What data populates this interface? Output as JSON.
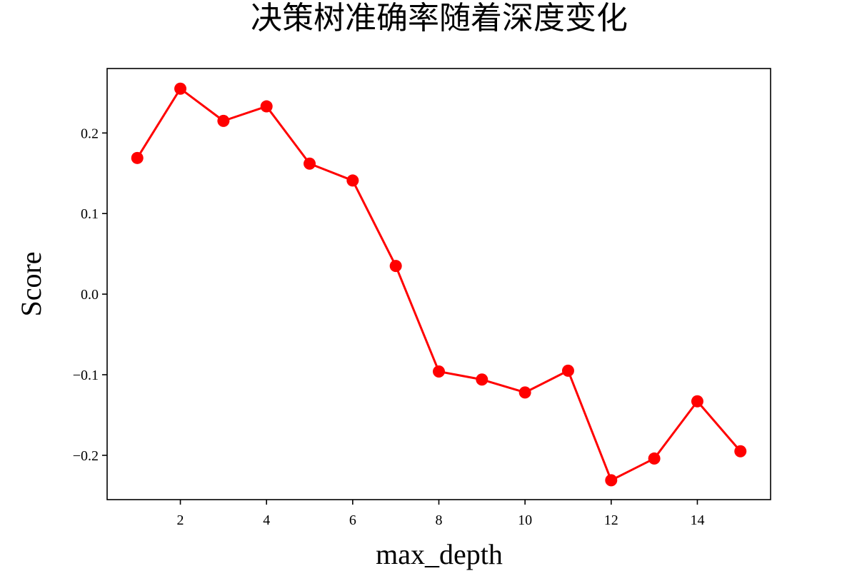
{
  "chart_data": {
    "type": "line",
    "title": "决策树准确率随着深度变化",
    "xlabel": "max_depth",
    "ylabel": "Score",
    "x": [
      1,
      2,
      3,
      4,
      5,
      6,
      7,
      8,
      9,
      10,
      11,
      12,
      13,
      14,
      15
    ],
    "series": [
      {
        "values": [
          0.169,
          0.255,
          0.215,
          0.233,
          0.162,
          0.141,
          0.035,
          -0.096,
          -0.106,
          -0.122,
          -0.095,
          -0.231,
          -0.204,
          -0.133,
          -0.195
        ],
        "color": "#ff0000",
        "marker": "circle"
      }
    ],
    "xlim": [
      0.3,
      15.7
    ],
    "ylim": [
      -0.255,
      0.28
    ],
    "xticks": [
      2,
      4,
      6,
      8,
      10,
      12,
      14
    ],
    "xtick_labels": [
      "2",
      "4",
      "6",
      "8",
      "10",
      "12",
      "14"
    ],
    "yticks": [
      -0.2,
      -0.1,
      0.0,
      0.1,
      0.2
    ],
    "ytick_labels": [
      "−0.2",
      "−0.1",
      "0.0",
      "0.1",
      "0.2"
    ],
    "grid": false,
    "legend": "none"
  }
}
